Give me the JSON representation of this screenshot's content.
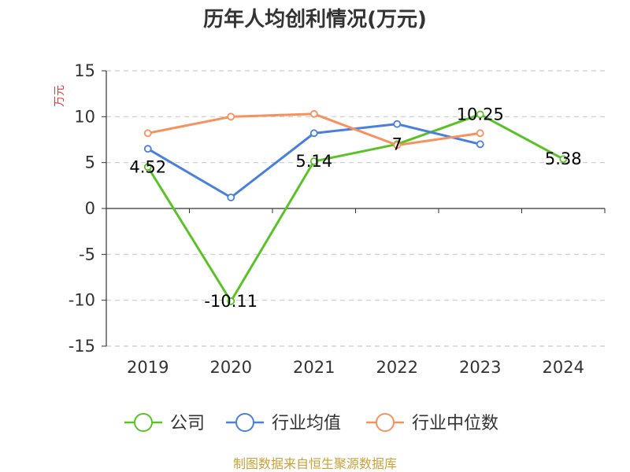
{
  "chart_data": {
    "type": "line",
    "title": "历年人均创利情况(万元)",
    "ylabel": "万元",
    "categories": [
      "2019",
      "2020",
      "2021",
      "2022",
      "2023",
      "2024"
    ],
    "ylim": [
      -15,
      15
    ],
    "yticks": [
      15,
      10,
      5,
      0,
      -5,
      -10,
      -15
    ],
    "grid": true,
    "legend_position": "bottom",
    "series": [
      {
        "name": "公司",
        "color": "#5bc226",
        "values": [
          4.52,
          -10.11,
          5.14,
          7,
          10.25,
          5.38
        ],
        "labels": [
          "4.52",
          "-10.11",
          "5.14",
          "7",
          "10.25",
          "5.38"
        ]
      },
      {
        "name": "行业均值",
        "color": "#4a7fdc",
        "values": [
          6.5,
          1.2,
          8.2,
          9.2,
          7.0,
          null
        ]
      },
      {
        "name": "行业中位数",
        "color": "#f7915e",
        "values": [
          8.2,
          10.0,
          10.3,
          6.9,
          8.2,
          null
        ]
      }
    ]
  },
  "source": "制图数据来自恒生聚源数据库"
}
